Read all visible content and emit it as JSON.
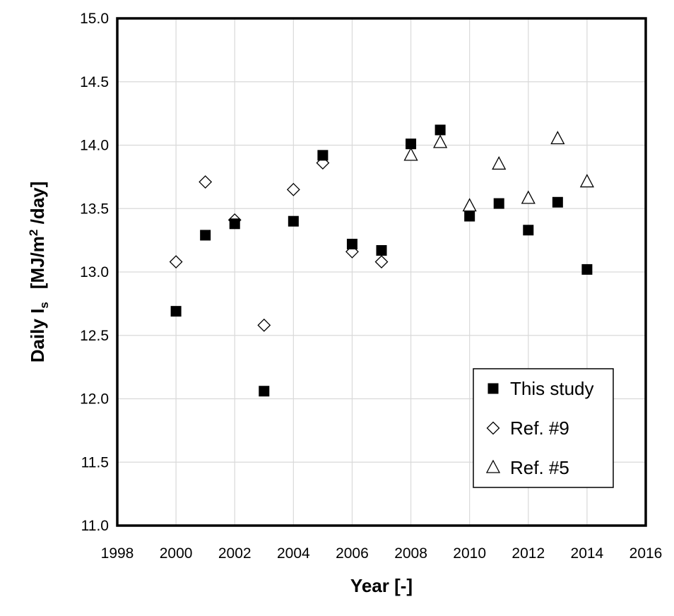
{
  "chart_data": {
    "type": "scatter",
    "title": "",
    "xlabel": "Year [-]",
    "ylabel": {
      "prefix": "Daily I",
      "subscript": "s",
      "units_open": "[MJ/m",
      "units_sup": "2",
      "units_close": " /day]"
    },
    "xlim": [
      1998,
      2016
    ],
    "ylim": [
      11.0,
      15.0
    ],
    "x_ticks": [
      "1998",
      "2000",
      "2002",
      "2004",
      "2006",
      "2008",
      "2010",
      "2012",
      "2014",
      "2016"
    ],
    "y_ticks": [
      "11.0",
      "11.5",
      "12.0",
      "12.5",
      "13.0",
      "13.5",
      "14.0",
      "14.5",
      "15.0"
    ],
    "grid": true,
    "legend_position": "bottom-right",
    "series": [
      {
        "name": "This study",
        "marker": "filled-square",
        "color": "#000000",
        "points": [
          [
            2000,
            12.69
          ],
          [
            2001,
            13.29
          ],
          [
            2002,
            13.38
          ],
          [
            2003,
            12.06
          ],
          [
            2004,
            13.4
          ],
          [
            2005,
            13.92
          ],
          [
            2006,
            13.22
          ],
          [
            2007,
            13.17
          ],
          [
            2008,
            14.01
          ],
          [
            2009,
            14.12
          ],
          [
            2010,
            13.44
          ],
          [
            2011,
            13.54
          ],
          [
            2012,
            13.33
          ],
          [
            2013,
            13.55
          ],
          [
            2014,
            13.02
          ]
        ]
      },
      {
        "name": "Ref. #9",
        "marker": "open-diamond",
        "color": "#000000",
        "points": [
          [
            2000,
            13.08
          ],
          [
            2001,
            13.71
          ],
          [
            2002,
            13.41
          ],
          [
            2003,
            12.58
          ],
          [
            2004,
            13.65
          ],
          [
            2005,
            13.86
          ],
          [
            2006,
            13.16
          ],
          [
            2007,
            13.08
          ]
        ]
      },
      {
        "name": "Ref. #5",
        "marker": "open-triangle",
        "color": "#000000",
        "points": [
          [
            2008,
            13.92
          ],
          [
            2009,
            14.02
          ],
          [
            2010,
            13.52
          ],
          [
            2011,
            13.85
          ],
          [
            2012,
            13.58
          ],
          [
            2013,
            14.05
          ],
          [
            2014,
            13.71
          ]
        ]
      }
    ]
  }
}
